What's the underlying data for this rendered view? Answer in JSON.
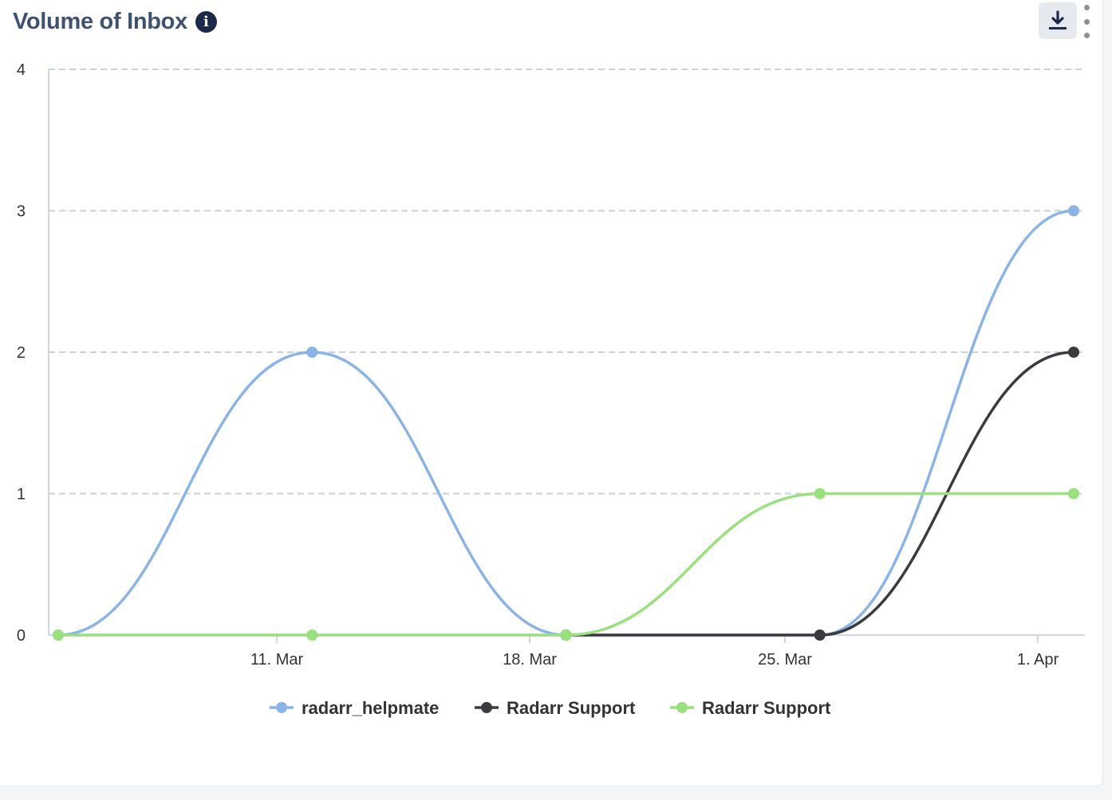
{
  "header": {
    "title": "Volume of Inbox",
    "info_icon": "info-icon",
    "download_icon": "download-icon",
    "menu_icon": "kebab-menu-icon"
  },
  "chart_data": {
    "type": "line",
    "smooth": true,
    "x": [
      "2024-03-04",
      "2024-03-11",
      "2024-03-18",
      "2024-03-25",
      "2024-04-01"
    ],
    "x_ticks": [
      "11. Mar",
      "18. Mar",
      "25. Mar",
      "1. Apr"
    ],
    "y_ticks": [
      "0",
      "1",
      "2",
      "3",
      "4"
    ],
    "ylim": [
      0,
      4
    ],
    "grid": true,
    "legend_position": "bottom-center",
    "series": [
      {
        "name": "radarr_helpmate",
        "color": "#8ab4e8",
        "values": [
          0,
          2,
          0,
          0,
          3
        ]
      },
      {
        "name": "Radarr Support",
        "color": "#3a3a3f",
        "values": [
          null,
          null,
          0,
          0,
          2
        ]
      },
      {
        "name": "Radarr Support",
        "color": "#98e17d",
        "values": [
          0,
          0,
          0,
          1,
          1
        ]
      }
    ]
  }
}
